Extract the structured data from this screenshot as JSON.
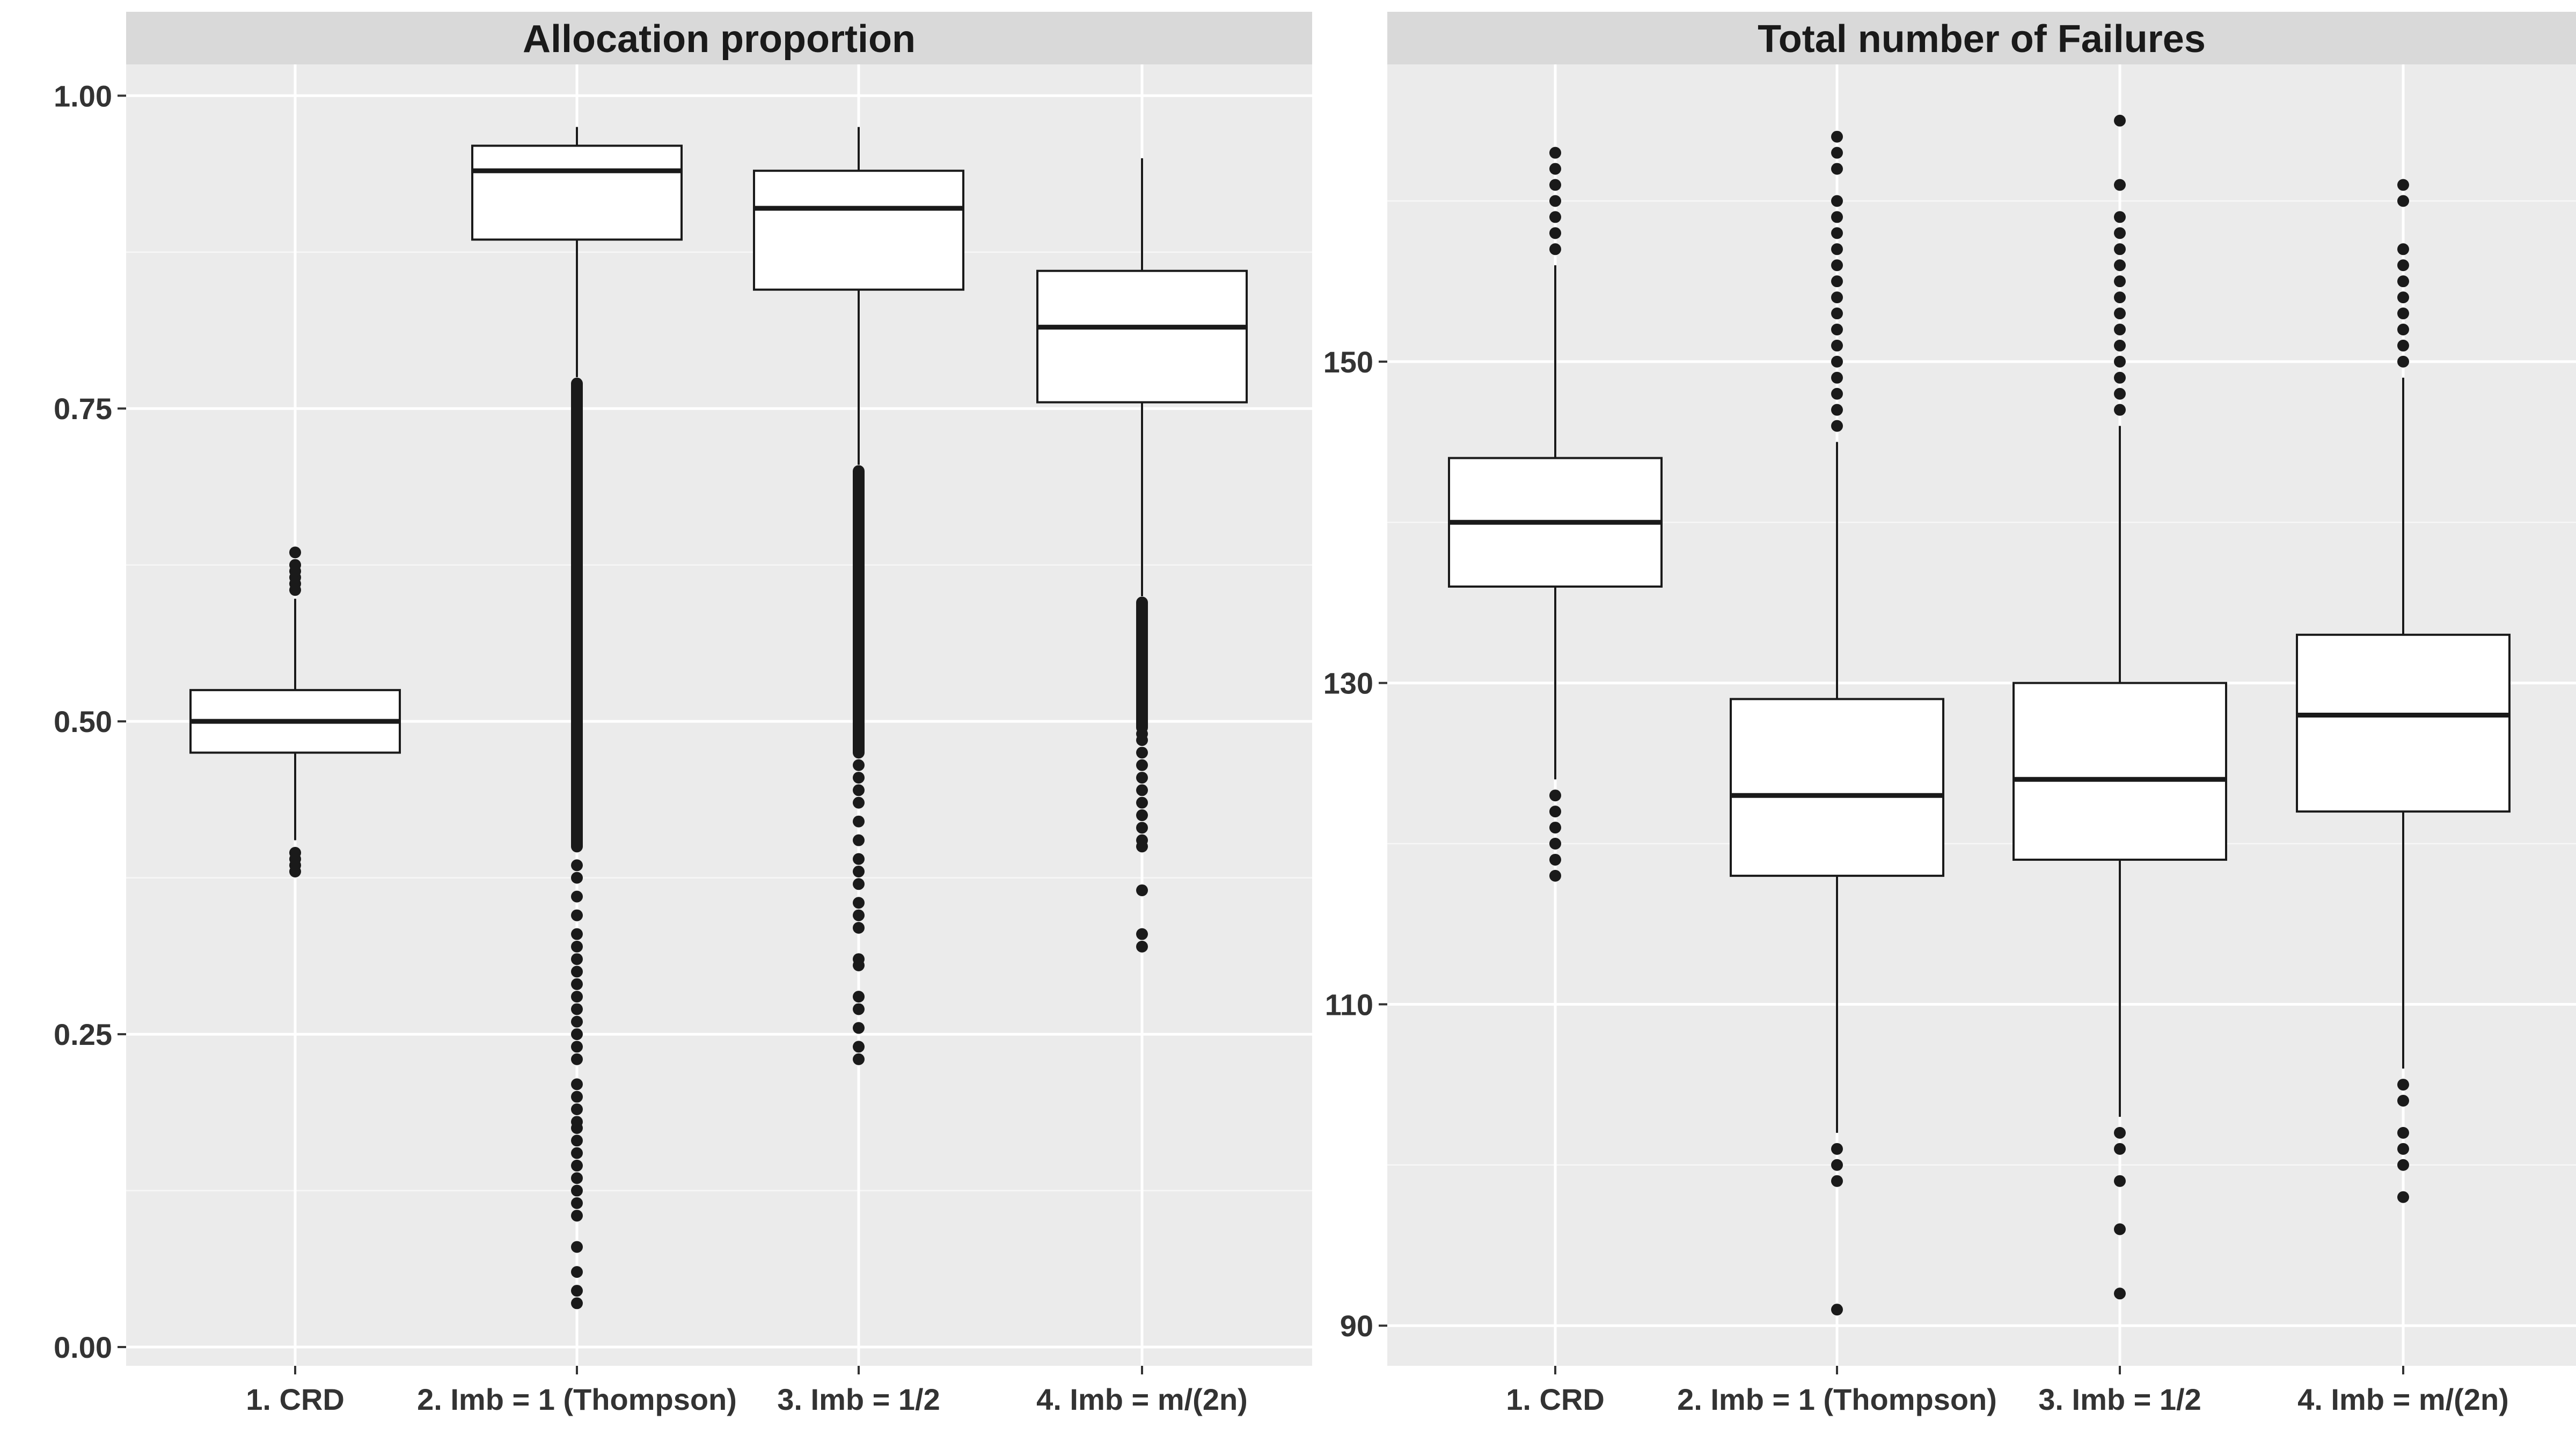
{
  "chart_data": [
    {
      "type": "boxplot",
      "title": "Allocation proportion",
      "xlabel": "",
      "ylabel": "",
      "categories": [
        "1. CRD",
        "2. Imb = 1 (Thompson)",
        "3. Imb = 1/2",
        "4. Imb = m/(2n)"
      ],
      "ylim": [
        -0.015,
        1.025
      ],
      "yticks": [
        0.0,
        0.25,
        0.5,
        0.75,
        1.0
      ],
      "ytick_labels": [
        "0.00",
        "0.25",
        "0.50",
        "0.75",
        "1.00"
      ],
      "boxes": [
        {
          "min": 0.405,
          "q1": 0.475,
          "median": 0.5,
          "q3": 0.525,
          "max": 0.598,
          "outliers": [
            0.38,
            0.385,
            0.39,
            0.395,
            0.605,
            0.61,
            0.615,
            0.62,
            0.625,
            0.635
          ]
        },
        {
          "min": 0.775,
          "q1": 0.885,
          "median": 0.94,
          "q3": 0.96,
          "max": 0.975,
          "outliers_band": [
            0.4,
            0.77
          ],
          "outliers": [
            0.035,
            0.045,
            0.06,
            0.08,
            0.105,
            0.115,
            0.125,
            0.135,
            0.145,
            0.155,
            0.165,
            0.175,
            0.18,
            0.19,
            0.2,
            0.21,
            0.23,
            0.24,
            0.25,
            0.26,
            0.27,
            0.28,
            0.29,
            0.3,
            0.31,
            0.32,
            0.33,
            0.345,
            0.36,
            0.375,
            0.385
          ]
        },
        {
          "min": 0.705,
          "q1": 0.845,
          "median": 0.91,
          "q3": 0.94,
          "max": 0.975,
          "outliers_band": [
            0.475,
            0.7
          ],
          "outliers": [
            0.23,
            0.24,
            0.255,
            0.27,
            0.28,
            0.305,
            0.31,
            0.335,
            0.345,
            0.355,
            0.37,
            0.38,
            0.39,
            0.405,
            0.42,
            0.435,
            0.445,
            0.455,
            0.465
          ]
        },
        {
          "min": 0.6,
          "q1": 0.755,
          "median": 0.815,
          "q3": 0.86,
          "max": 0.95,
          "outliers_band": [
            0.495,
            0.595
          ],
          "outliers": [
            0.32,
            0.33,
            0.365,
            0.4,
            0.405,
            0.415,
            0.425,
            0.435,
            0.445,
            0.455,
            0.465,
            0.475,
            0.485,
            0.49
          ]
        }
      ]
    },
    {
      "type": "boxplot",
      "title": "Total number of Failures",
      "xlabel": "",
      "ylabel": "",
      "categories": [
        "1. CRD",
        "2. Imb = 1 (Thompson)",
        "3. Imb = 1/2",
        "4. Imb = m/(2n)"
      ],
      "ylim": [
        87.5,
        168.5
      ],
      "yticks": [
        90,
        110,
        130,
        150
      ],
      "ytick_labels": [
        "90",
        "110",
        "130",
        "150"
      ],
      "boxes": [
        {
          "min": 124,
          "q1": 136,
          "median": 140,
          "q3": 144,
          "max": 156,
          "outliers": [
            118,
            119,
            120,
            121,
            122,
            123,
            157,
            158,
            159,
            160,
            161,
            162,
            163
          ]
        },
        {
          "min": 102,
          "q1": 118,
          "median": 123,
          "q3": 129,
          "max": 145,
          "outliers": [
            91,
            99,
            100,
            101,
            146,
            147,
            148,
            149,
            150,
            151,
            152,
            153,
            154,
            155,
            156,
            157,
            158,
            159,
            160,
            162,
            163,
            164
          ]
        },
        {
          "min": 103,
          "q1": 119,
          "median": 124,
          "q3": 130,
          "max": 146,
          "outliers": [
            92,
            96,
            99,
            101,
            102,
            147,
            148,
            149,
            150,
            151,
            152,
            153,
            154,
            155,
            156,
            157,
            158,
            159,
            161,
            165
          ]
        },
        {
          "min": 106,
          "q1": 122,
          "median": 128,
          "q3": 133,
          "max": 149,
          "outliers": [
            98,
            100,
            101,
            102,
            104,
            105,
            150,
            151,
            152,
            153,
            154,
            155,
            156,
            157,
            160,
            161
          ]
        }
      ]
    }
  ]
}
